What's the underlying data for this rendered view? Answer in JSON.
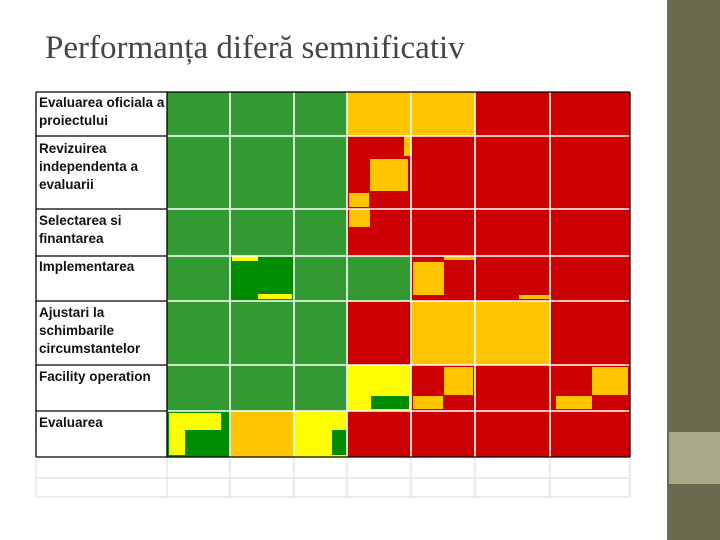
{
  "slide": {
    "title": "Performanța diferă semnificativ"
  },
  "colors": {
    "green": "#339933",
    "dark_green": "#008c00",
    "yellow": "#ffc600",
    "bright_yellow": "#ffff00",
    "red": "#cc0000",
    "sidebar": "#6b6a4e",
    "sidebar_tab": "#a9a985"
  },
  "table": {
    "rows": [
      {
        "label": "Evaluarea oficiala a proiectului"
      },
      {
        "label": "Revizuirea independenta a evaluarii"
      },
      {
        "label": "Selectarea si finantarea"
      },
      {
        "label": "Implementarea"
      },
      {
        "label": "Ajustari la schimbarile circumstantelor"
      },
      {
        "label": "Facility operation"
      },
      {
        "label": "Evaluarea"
      }
    ]
  }
}
